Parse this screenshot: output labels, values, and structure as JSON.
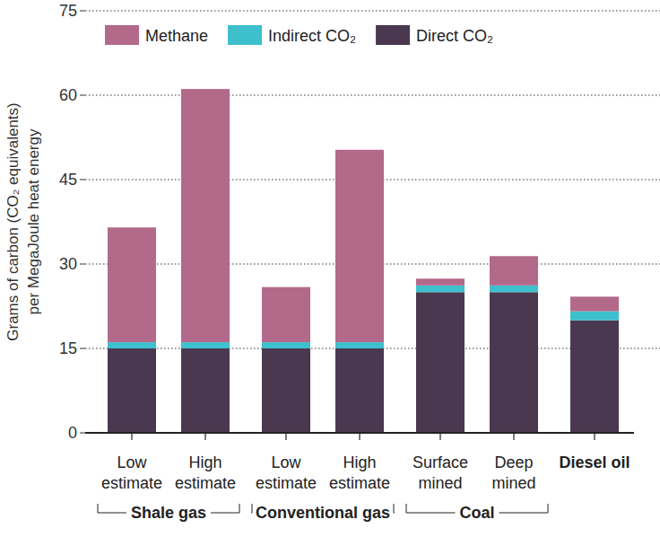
{
  "chart_data": {
    "type": "bar",
    "stacked": true,
    "grid": true,
    "legend": "top-left",
    "y_label": [
      "Grams of carbon (CO₂ equivalents)",
      "per MegaJoule heat energy"
    ],
    "categories": [
      "Low estimate",
      "High estimate",
      "Low estimate",
      "High estimate",
      "Surface mined",
      "Deep mined",
      "Diesel oil"
    ],
    "groups": [
      {
        "label": "Shale gas",
        "start": 0,
        "end": 1
      },
      {
        "label": "Conventional gas",
        "start": 2,
        "end": 3
      },
      {
        "label": "Coal",
        "start": 4,
        "end": 5
      }
    ],
    "ylim": [
      0,
      75
    ],
    "yticks": [
      0,
      15,
      30,
      45,
      60,
      75
    ],
    "series": [
      {
        "name": "Direct CO₂",
        "color": "#4a3850",
        "values": [
          15,
          15,
          15,
          15,
          25,
          25,
          20
        ]
      },
      {
        "name": "Indirect CO₂",
        "color": "#3dbfcc",
        "values": [
          1.1,
          1.1,
          1.1,
          1.1,
          1.2,
          1.2,
          1.6
        ]
      },
      {
        "name": "Methane",
        "color": "#b3698a",
        "values": [
          20.4,
          45,
          9.8,
          34.2,
          1.2,
          5.2,
          2.6
        ]
      }
    ]
  }
}
